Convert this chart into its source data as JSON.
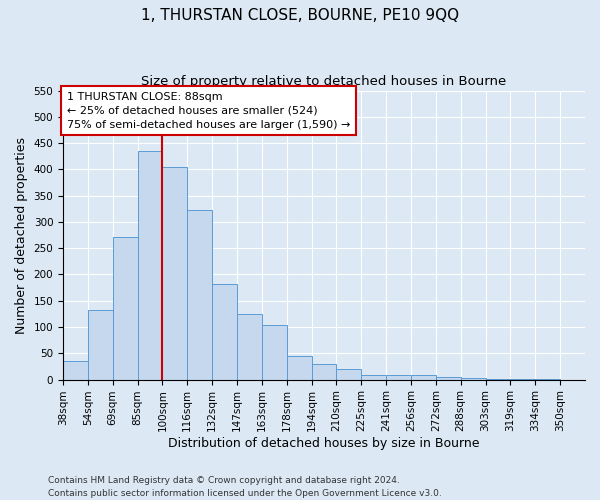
{
  "title": "1, THURSTAN CLOSE, BOURNE, PE10 9QQ",
  "subtitle": "Size of property relative to detached houses in Bourne",
  "xlabel": "Distribution of detached houses by size in Bourne",
  "ylabel": "Number of detached properties",
  "bar_labels": [
    "38sqm",
    "54sqm",
    "69sqm",
    "85sqm",
    "100sqm",
    "116sqm",
    "132sqm",
    "147sqm",
    "163sqm",
    "178sqm",
    "194sqm",
    "210sqm",
    "225sqm",
    "241sqm",
    "256sqm",
    "272sqm",
    "288sqm",
    "303sqm",
    "319sqm",
    "334sqm",
    "350sqm"
  ],
  "bar_values": [
    35,
    133,
    272,
    435,
    405,
    323,
    182,
    125,
    103,
    45,
    30,
    20,
    8,
    8,
    8,
    4,
    3,
    2,
    2,
    2,
    0
  ],
  "bar_color": "#c5d8ed",
  "bar_edge_color": "#5b9bd5",
  "annotation_text_line1": "1 THURSTAN CLOSE: 88sqm",
  "annotation_text_line2": "← 25% of detached houses are smaller (524)",
  "annotation_text_line3": "75% of semi-detached houses are larger (1,590) →",
  "annotation_box_color": "#ffffff",
  "annotation_box_edge": "#cc0000",
  "vline_color": "#cc0000",
  "ylim": [
    0,
    550
  ],
  "yticks": [
    0,
    50,
    100,
    150,
    200,
    250,
    300,
    350,
    400,
    450,
    500,
    550
  ],
  "footer_line1": "Contains HM Land Registry data © Crown copyright and database right 2024.",
  "footer_line2": "Contains public sector information licensed under the Open Government Licence v3.0.",
  "background_color": "#dce9f5",
  "plot_background": "#dce9f5",
  "grid_color": "#ffffff",
  "title_fontsize": 11,
  "subtitle_fontsize": 9.5,
  "axis_label_fontsize": 9,
  "tick_fontsize": 7.5,
  "footer_fontsize": 6.5,
  "annotation_fontsize": 8
}
